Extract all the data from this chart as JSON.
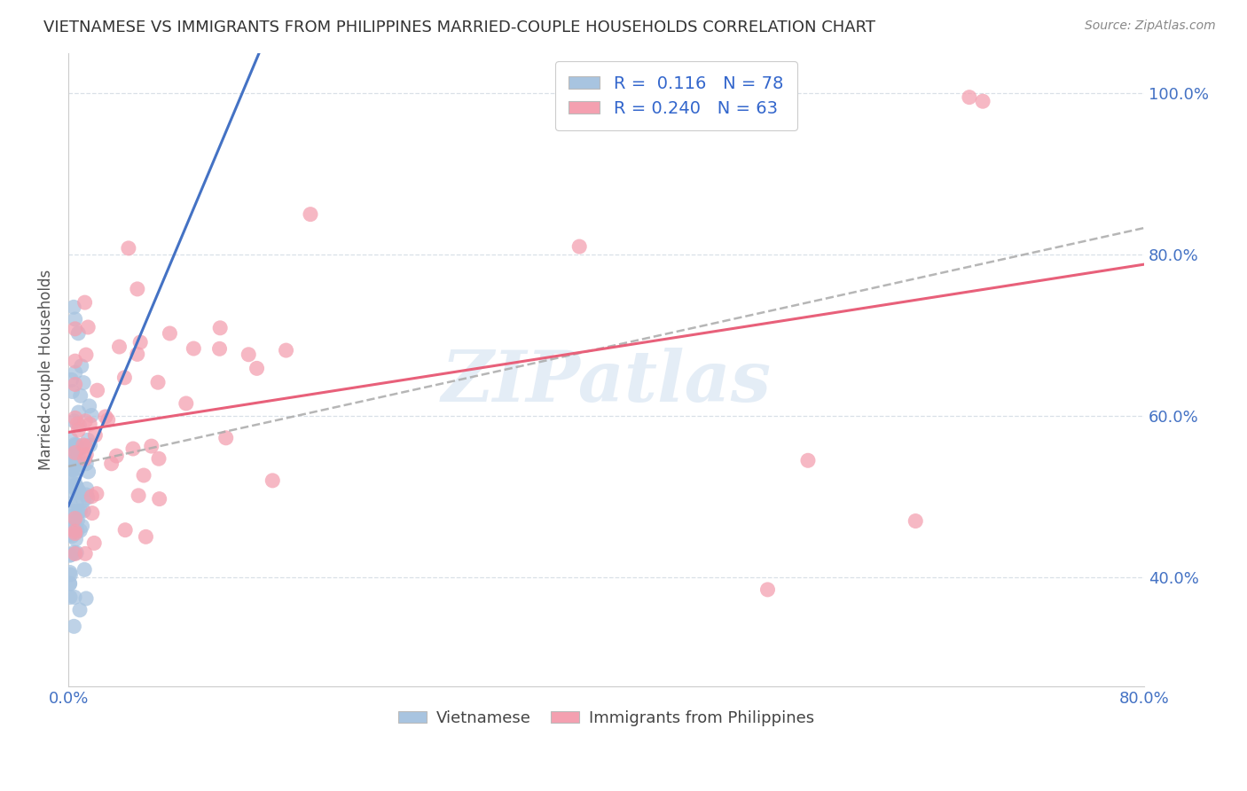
{
  "title": "VIETNAMESE VS IMMIGRANTS FROM PHILIPPINES MARRIED-COUPLE HOUSEHOLDS CORRELATION CHART",
  "source": "Source: ZipAtlas.com",
  "ylabel": "Married-couple Households",
  "watermark": "ZIPatlas",
  "xmin": 0.0,
  "xmax": 0.8,
  "ymin": 0.265,
  "ymax": 1.05,
  "xtick_positions": [
    0.0,
    0.1,
    0.2,
    0.3,
    0.4,
    0.5,
    0.6,
    0.7,
    0.8
  ],
  "xtick_labels": [
    "0.0%",
    "",
    "",
    "",
    "",
    "",
    "",
    "",
    "80.0%"
  ],
  "ytick_positions": [
    0.4,
    0.6,
    0.8,
    1.0
  ],
  "ytick_labels": [
    "40.0%",
    "60.0%",
    "80.0%",
    "100.0%"
  ],
  "R_viet": 0.116,
  "N_viet": 78,
  "R_phil": 0.24,
  "N_phil": 63,
  "color_viet": "#a8c4e0",
  "color_phil": "#f4a0b0",
  "color_viet_line": "#4472c4",
  "color_phil_line": "#e8607a",
  "color_dash": "#aaaaaa",
  "legend_label_viet": "Vietnamese",
  "legend_label_phil": "Immigrants from Philippines",
  "legend_text_color": "#3366cc",
  "grid_color": "#d5dde5",
  "title_color": "#333333",
  "source_color": "#888888",
  "ylabel_color": "#555555",
  "tick_label_color": "#4472c4"
}
